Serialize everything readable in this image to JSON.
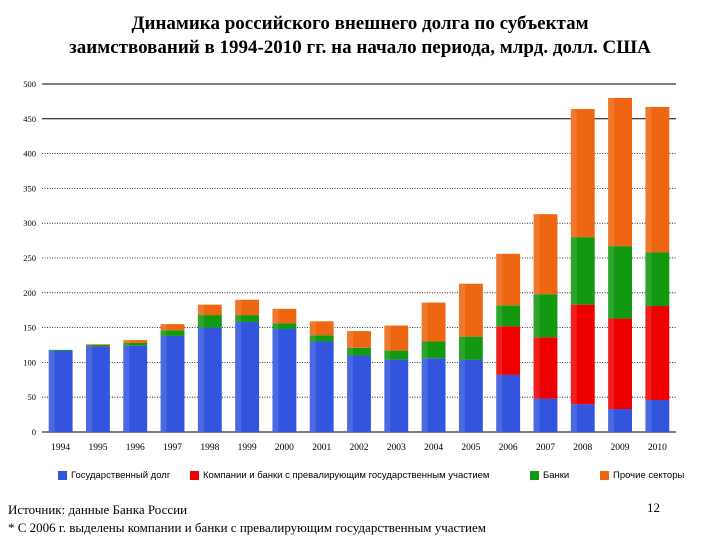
{
  "title_line1": "Динамика российского внешнего долга по субъектам",
  "title_line2": "заимствований в 1994-2010 гг. на начало периода, млрд. долл. США",
  "footer": {
    "source": "Источник: данные Банка России",
    "note": "* С 2006 г. выделены компании и банки с превалирующим государственным участием"
  },
  "page_number": "12",
  "chart_data": {
    "type": "bar",
    "stacked": true,
    "categories": [
      "1994",
      "1995",
      "1996",
      "1997",
      "1998",
      "1999",
      "2000",
      "2001",
      "2002",
      "2003",
      "2004",
      "2005",
      "2006",
      "2007",
      "2008",
      "2009",
      "2010"
    ],
    "ylim": [
      0,
      500
    ],
    "yticks": [
      0,
      50,
      100,
      150,
      200,
      250,
      300,
      350,
      400,
      450,
      500
    ],
    "grid": true,
    "legend_position": "bottom",
    "series": [
      {
        "name": "Государственный долг",
        "color": "#3355dd",
        "values": [
          117,
          123,
          124,
          138,
          150,
          158,
          148,
          130,
          110,
          104,
          106,
          104,
          82,
          48,
          40,
          33,
          46
        ]
      },
      {
        "name": "Компании и банки с превалирующим государственным участием",
        "color": "#ee0000",
        "values": [
          0,
          0,
          0,
          0,
          0,
          0,
          0,
          0,
          0,
          0,
          0,
          0,
          70,
          88,
          143,
          130,
          135
        ]
      },
      {
        "name": "Банки",
        "color": "#119911",
        "values": [
          1,
          2,
          4,
          8,
          18,
          10,
          8,
          9,
          11,
          13,
          24,
          33,
          30,
          62,
          97,
          104,
          77
        ]
      },
      {
        "name": "Прочие секторы",
        "color": "#ee6611",
        "values": [
          0,
          1,
          4,
          9,
          15,
          22,
          21,
          20,
          24,
          36,
          56,
          76,
          74,
          115,
          184,
          213,
          209
        ]
      }
    ]
  }
}
